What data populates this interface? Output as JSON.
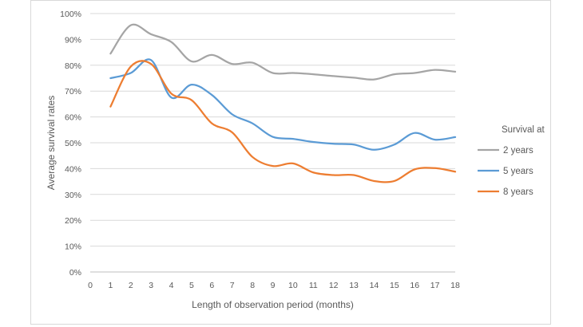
{
  "chart_data": {
    "type": "line",
    "title": "",
    "xlabel": "Length of observation period (months)",
    "ylabel": "Average survival rates",
    "x_ticks": [
      "0",
      "1",
      "2",
      "3",
      "4",
      "5",
      "6",
      "7",
      "8",
      "9",
      "10",
      "11",
      "12",
      "13",
      "14",
      "15",
      "16",
      "17",
      "18"
    ],
    "y_ticks": [
      "0%",
      "10%",
      "20%",
      "30%",
      "40%",
      "50%",
      "60%",
      "70%",
      "80%",
      "90%",
      "100%"
    ],
    "xlim": [
      0,
      18
    ],
    "ylim": [
      0,
      100
    ],
    "grid": "horizontal",
    "legend_title": "Survival at",
    "legend_position": "right",
    "x": [
      1,
      2,
      3,
      4,
      5,
      6,
      7,
      8,
      9,
      10,
      11,
      12,
      13,
      14,
      15,
      16,
      17,
      18
    ],
    "series": [
      {
        "name": "2 years",
        "color": "#a5a5a5",
        "values": [
          84.5,
          95.5,
          92,
          89,
          81.5,
          84,
          80.5,
          81,
          77,
          77,
          76.5,
          75.8,
          75.2,
          74.5,
          76.5,
          77,
          78.2,
          77.5
        ]
      },
      {
        "name": "5 years",
        "color": "#5b9bd5",
        "values": [
          75,
          77,
          82,
          67.5,
          72.5,
          68.5,
          61,
          57.5,
          52.3,
          51.5,
          50.3,
          49.6,
          49.3,
          47.3,
          49.3,
          53.8,
          51.2,
          52.2
        ]
      },
      {
        "name": "8 years",
        "color": "#ed7d31",
        "values": [
          64,
          79.5,
          80.5,
          69,
          66.5,
          57.5,
          54,
          44.5,
          41,
          42,
          38.5,
          37.5,
          37.5,
          35.2,
          35.2,
          39.7,
          40.2,
          38.8
        ]
      }
    ]
  },
  "colors": {
    "grid": "#d9d9d9",
    "axis": "#bfbfbf",
    "text": "#595959"
  }
}
